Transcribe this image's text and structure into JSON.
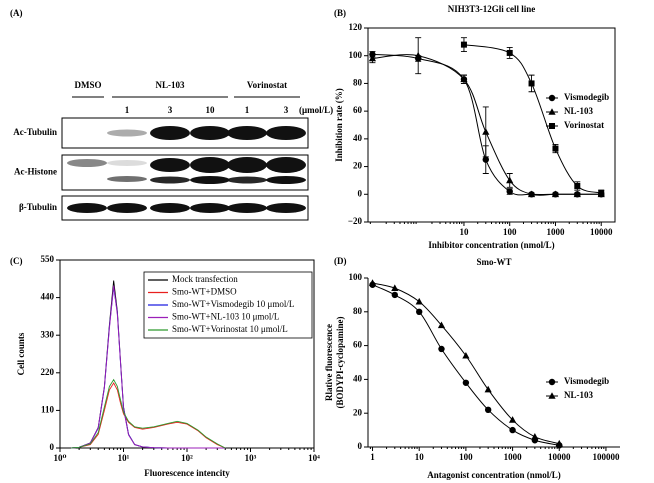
{
  "panel_labels": [
    "(A)",
    "(B)",
    "(C)",
    "(D)"
  ],
  "blot": {
    "groups": [
      "DMSO",
      "NL-103",
      "Vorinostat"
    ],
    "doses": [
      "1",
      "3",
      "10",
      "1",
      "3"
    ],
    "unit": "(μmol/L)",
    "rows": [
      "Ac-Tubulin",
      "Ac-Histone",
      "β-Tubulin"
    ]
  },
  "chart_data": [
    {
      "type": "line",
      "title": "NIH3T3-12Gli cell line",
      "xlabel": "Inhibitor concentration (nmol/L)",
      "ylabel": "Inhibition rate (%)",
      "xscale": "log",
      "xlim": [
        0.08,
        20000
      ],
      "xticks": [
        10,
        100,
        1000,
        10000
      ],
      "ylim": [
        -20,
        120
      ],
      "yticks": [
        {
          "value": -20,
          "label": "−20"
        },
        0,
        20,
        40,
        60,
        80,
        100,
        120
      ],
      "legend": "center right",
      "x": [
        0.1,
        1,
        10,
        30,
        100,
        300,
        1000,
        3000,
        10000
      ],
      "series": [
        {
          "name": "Vismodegib",
          "color": "#000000",
          "marker": "circle",
          "values": [
            101,
            98,
            83,
            25,
            2,
            0,
            0,
            0,
            0
          ],
          "errors": [
            2,
            2,
            3,
            10,
            2,
            1,
            1,
            1,
            1
          ]
        },
        {
          "name": "NL-103",
          "color": "#000000",
          "marker": "triangle",
          "values": [
            98,
            100,
            83,
            45,
            10,
            0,
            0,
            0,
            0
          ],
          "errors": [
            3,
            13,
            3,
            18,
            5,
            1,
            1,
            1,
            1
          ]
        },
        {
          "name": "Vorinostat",
          "color": "#000000",
          "marker": "square",
          "x": [
            10,
            100,
            300,
            1000,
            3000,
            10000
          ],
          "values": [
            108,
            102,
            80,
            33,
            6,
            1
          ],
          "errors": [
            5,
            4,
            6,
            3,
            3,
            2
          ]
        }
      ]
    },
    {
      "type": "line",
      "xlabel": "Fluorescence intencity",
      "ylabel": "Cell counts",
      "xscale": "log",
      "xlim": [
        1,
        10000
      ],
      "xticks": [
        {
          "value": 1,
          "label": "10⁰"
        },
        {
          "value": 10,
          "label": "10¹"
        },
        {
          "value": 100,
          "label": "10²"
        },
        {
          "value": 1000,
          "label": "10³"
        },
        {
          "value": 10000,
          "label": "10⁴"
        }
      ],
      "ylim": [
        0,
        550
      ],
      "yticks": [
        0,
        110,
        220,
        330,
        440,
        550
      ],
      "legend": "upper right",
      "x": [
        1.5,
        2,
        3,
        4,
        5,
        6,
        7,
        8,
        9,
        10,
        12,
        15,
        20,
        30,
        50,
        70,
        100,
        150,
        200,
        300,
        400
      ],
      "series": [
        {
          "name": "Mock transfection",
          "color": "#000000",
          "values": [
            0,
            2,
            15,
            60,
            180,
            360,
            490,
            400,
            250,
            120,
            40,
            10,
            3,
            1,
            0,
            0,
            0,
            0,
            0,
            0,
            0
          ]
        },
        {
          "name": "Smo-WT+DMSO",
          "color": "#e8201e",
          "values": [
            0,
            2,
            10,
            40,
            110,
            170,
            190,
            170,
            130,
            100,
            75,
            60,
            55,
            60,
            70,
            75,
            70,
            50,
            30,
            10,
            0
          ]
        },
        {
          "name": "Smo-WT+Vismodegib 10 μmol/L",
          "color": "#1f1fe0",
          "values": [
            0,
            2,
            14,
            58,
            175,
            355,
            470,
            395,
            245,
            118,
            40,
            10,
            3,
            1,
            0,
            0,
            0,
            0,
            0,
            0,
            0
          ]
        },
        {
          "name": "Smo-WT+NL-103 10 μmol/L",
          "color": "#9b1fb8",
          "values": [
            0,
            2,
            14,
            60,
            178,
            350,
            475,
            390,
            248,
            115,
            38,
            10,
            3,
            1,
            0,
            0,
            0,
            0,
            0,
            0,
            0
          ]
        },
        {
          "name": "Smo-WT+Vorinostat 10 μmol/L",
          "color": "#2e9a2e",
          "values": [
            0,
            2,
            12,
            45,
            120,
            180,
            200,
            180,
            140,
            105,
            78,
            62,
            58,
            62,
            72,
            78,
            72,
            52,
            32,
            12,
            0
          ]
        }
      ]
    },
    {
      "type": "line",
      "title": "Smo-WT",
      "xlabel": "Antagonist concentration (nmol/L)",
      "ylabel": [
        "Rlative fluorescence",
        "(BODYPI-cyclopamine)"
      ],
      "xscale": "log",
      "xlim": [
        0.8,
        200000
      ],
      "xticks": [
        1,
        10,
        100,
        1000,
        10000,
        100000
      ],
      "ylim": [
        0,
        100
      ],
      "yticks": [
        0,
        20,
        40,
        60,
        80,
        100
      ],
      "legend": "center right",
      "x": [
        1,
        3,
        10,
        30,
        100,
        300,
        1000,
        3000,
        10000
      ],
      "series": [
        {
          "name": "Vismodegib",
          "color": "#000000",
          "marker": "circle",
          "values": [
            96,
            90,
            80,
            58,
            38,
            22,
            10,
            4,
            1
          ]
        },
        {
          "name": "NL-103",
          "color": "#000000",
          "marker": "triangle",
          "values": [
            97,
            94,
            86,
            72,
            54,
            34,
            16,
            6,
            2
          ]
        }
      ]
    }
  ]
}
